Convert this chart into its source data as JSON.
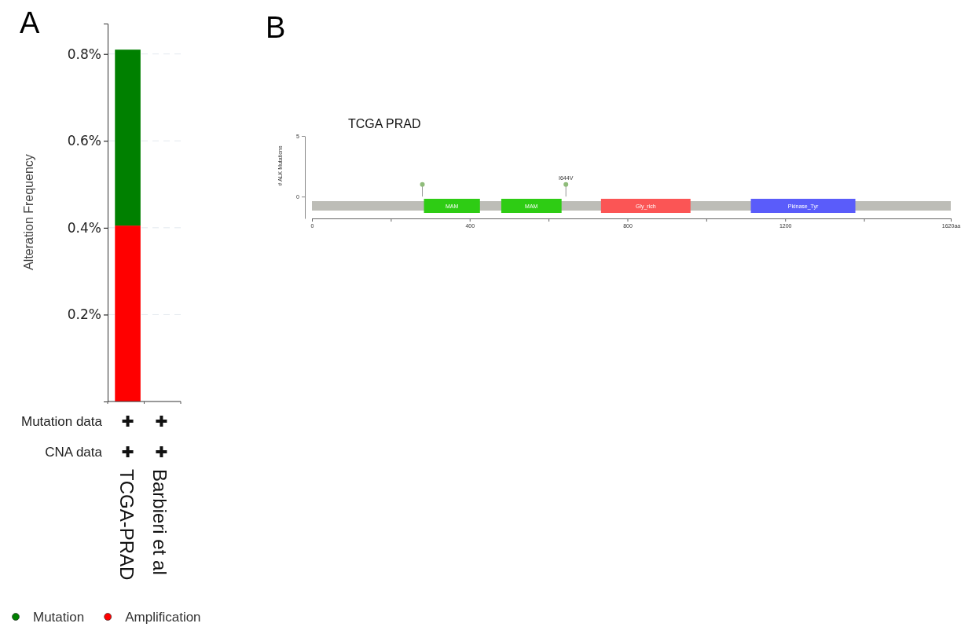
{
  "chart_data": [
    {
      "type": "bar",
      "stacked": true,
      "ylabel": "Alteration Frequency",
      "categories": [
        "TCGA-PRAD",
        "Barbieri et al"
      ],
      "series": [
        {
          "name": "Amplification",
          "color": "#ff0000",
          "values": [
            0.405,
            0
          ]
        },
        {
          "name": "Mutation",
          "color": "#008000",
          "values": [
            0.405,
            0
          ]
        }
      ],
      "ylim": [
        0,
        0.87
      ],
      "yticks": [
        {
          "value": 0.2,
          "label": "0.2%"
        },
        {
          "value": 0.4,
          "label": "0.4%"
        },
        {
          "value": 0.6,
          "label": "0.6%"
        },
        {
          "value": 0.8,
          "label": "0.8%"
        }
      ],
      "grid": "y",
      "legend": "bottom",
      "annotations": [
        "A",
        "Mutation data",
        "CNA data"
      ]
    },
    {
      "type": "lollipop",
      "title": "TCGA PRAD",
      "ylabel": "# ALK Mutations",
      "x": [
        280,
        644
      ],
      "values": [
        1,
        1
      ],
      "value_labels": [
        null,
        "I644V"
      ],
      "color": "#8fbc7a",
      "marker": "circle",
      "xlim": [
        0,
        1620
      ],
      "xticks": [
        0,
        {
          "value": 200,
          "label": null
        },
        400,
        {
          "value": 600,
          "label": null
        },
        800,
        {
          "value": 1000,
          "label": null
        },
        1200,
        {
          "value": 1400,
          "label": null
        },
        {
          "value": 1620,
          "label": "1620aa"
        }
      ],
      "ylim": [
        -1.8,
        5
      ],
      "yticks": [
        0,
        5
      ],
      "bands": [
        {
          "axis": "x",
          "from": 0,
          "to": 1620,
          "label": null,
          "color": "#bdbdb7"
        },
        {
          "axis": "x",
          "from": 284,
          "to": 426,
          "label": "MAM",
          "color": "#2ecc14"
        },
        {
          "axis": "x",
          "from": 480,
          "to": 633,
          "label": "MAM",
          "color": "#2ecc14"
        },
        {
          "axis": "x",
          "from": 733,
          "to": 960,
          "label": "Gly_rich",
          "color": "#fb5555"
        },
        {
          "axis": "x",
          "from": 1113,
          "to": 1378,
          "label": "Pkinase_Tyr",
          "color": "#5a5cfa"
        }
      ],
      "annotations": [
        "B"
      ]
    }
  ]
}
